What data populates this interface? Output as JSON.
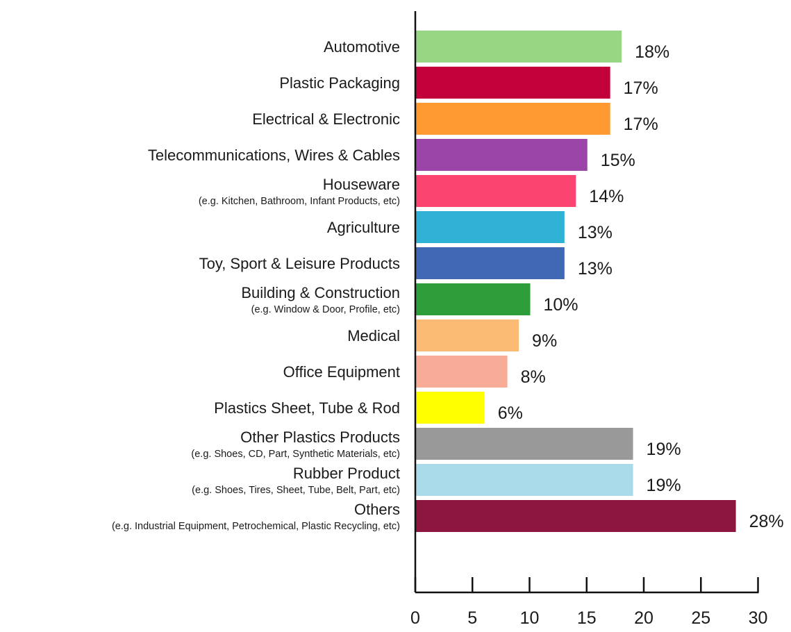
{
  "chart_data": {
    "type": "bar",
    "orientation": "horizontal",
    "title": "",
    "xlabel": "",
    "ylabel": "",
    "xlim": [
      0,
      30
    ],
    "x_ticks": [
      0,
      5,
      10,
      15,
      20,
      25,
      30
    ],
    "grid": false,
    "legend": "none",
    "categories": [
      {
        "label": "Automotive",
        "sublabel": "",
        "value": 18,
        "value_label": "18%",
        "color": "#99d683"
      },
      {
        "label": "Plastic Packaging",
        "sublabel": "",
        "value": 17,
        "value_label": "17%",
        "color": "#c2003a"
      },
      {
        "label": "Electrical & Electronic",
        "sublabel": "",
        "value": 17,
        "value_label": "17%",
        "color": "#ff9a33"
      },
      {
        "label": "Telecommunications, Wires & Cables",
        "sublabel": "",
        "value": 15,
        "value_label": "15%",
        "color": "#9b45a8"
      },
      {
        "label": "Houseware",
        "sublabel": "(e.g. Kitchen, Bathroom, Infant Products, etc)",
        "value": 14,
        "value_label": "14%",
        "color": "#fb4470"
      },
      {
        "label": "Agriculture",
        "sublabel": "",
        "value": 13,
        "value_label": "13%",
        "color": "#2fb2d5"
      },
      {
        "label": "Toy, Sport & Leisure Products",
        "sublabel": "",
        "value": 13,
        "value_label": "13%",
        "color": "#4168b4"
      },
      {
        "label": "Building & Construction",
        "sublabel": "(e.g. Window & Door, Profile, etc)",
        "value": 10,
        "value_label": "10%",
        "color": "#2e9e3a"
      },
      {
        "label": "Medical",
        "sublabel": "",
        "value": 9,
        "value_label": "9%",
        "color": "#fbbb74"
      },
      {
        "label": "Office Equipment",
        "sublabel": "",
        "value": 8,
        "value_label": "8%",
        "color": "#f8ab96"
      },
      {
        "label": "Plastics Sheet, Tube & Rod",
        "sublabel": "",
        "value": 6,
        "value_label": "6%",
        "color": "#ffff00"
      },
      {
        "label": "Other Plastics Products",
        "sublabel": "(e.g. Shoes, CD, Part, Synthetic Materials, etc)",
        "value": 19,
        "value_label": "19%",
        "color": "#999999"
      },
      {
        "label": "Rubber Product",
        "sublabel": "(e.g. Shoes, Tires, Sheet, Tube, Belt, Part, etc)",
        "value": 19,
        "value_label": "19%",
        "color": "#a9daea"
      },
      {
        "label": "Others",
        "sublabel": "(e.g. Industrial Equipment, Petrochemical, Plastic Recycling, etc)",
        "value": 28,
        "value_label": "28%",
        "color": "#8c1640"
      }
    ]
  }
}
